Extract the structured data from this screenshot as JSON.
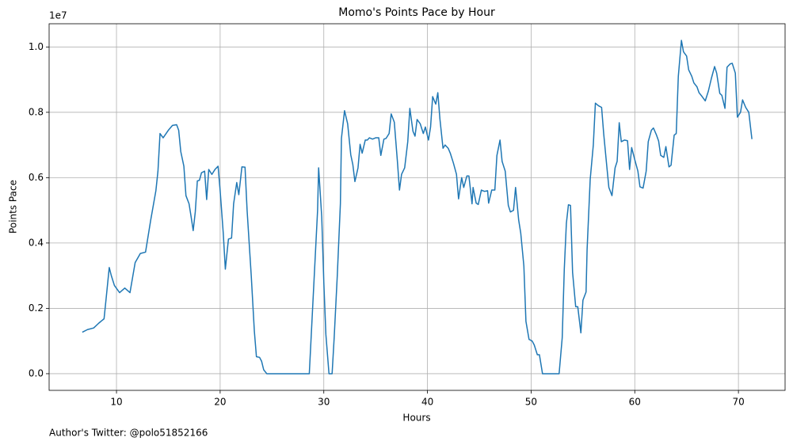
{
  "chart_data": {
    "type": "line",
    "title": "Momo's Points Pace by Hour",
    "x_label": "Hours",
    "y_label": "Points Pace",
    "y_offset_label": "1e7",
    "footer": "Author's Twitter: @polo51852166",
    "grid": true,
    "xlim": [
      3.5,
      74.5
    ],
    "xticks": [
      10,
      20,
      30,
      40,
      50,
      60,
      70
    ],
    "ylim": [
      -510000,
      10710000
    ],
    "yticks": [
      {
        "value": 0,
        "label": "0.0"
      },
      {
        "value": 2000000,
        "label": "0.2"
      },
      {
        "value": 4000000,
        "label": "0.4"
      },
      {
        "value": 6000000,
        "label": "0.6"
      },
      {
        "value": 8000000,
        "label": "0.8"
      },
      {
        "value": 10000000,
        "label": "1.0"
      }
    ],
    "series": [
      {
        "color": "#1f77b4",
        "x": [
          6.7,
          7.2,
          7.8,
          8.3,
          8.8,
          9.0,
          9.3,
          9.5,
          9.8,
          10.3,
          10.8,
          11.3,
          11.8,
          12.3,
          12.8,
          13.3,
          13.8,
          14.0,
          14.2,
          14.5,
          15.0,
          15.4,
          15.8,
          16.0,
          16.2,
          16.5,
          16.7,
          17.0,
          17.2,
          17.4,
          17.6,
          17.8,
          18.0,
          18.2,
          18.5,
          18.7,
          18.9,
          19.2,
          19.5,
          19.8,
          20.0,
          20.3,
          20.5,
          20.8,
          21.1,
          21.3,
          21.6,
          21.8,
          22.1,
          22.4,
          22.6,
          23.0,
          23.3,
          23.5,
          23.8,
          24.0,
          24.2,
          24.5,
          28.6,
          29.0,
          29.4,
          29.5,
          29.8,
          30.0,
          30.2,
          30.5,
          30.8,
          31.0,
          31.3,
          31.6,
          31.7,
          32.0,
          32.3,
          32.6,
          32.8,
          33.0,
          33.3,
          33.5,
          33.7,
          34.0,
          34.2,
          34.4,
          34.7,
          35.0,
          35.3,
          35.5,
          35.8,
          36.0,
          36.3,
          36.5,
          36.8,
          37.1,
          37.3,
          37.5,
          37.8,
          38.1,
          38.3,
          38.6,
          38.8,
          39.0,
          39.3,
          39.6,
          39.8,
          40.1,
          40.3,
          40.5,
          40.8,
          41.0,
          41.2,
          41.5,
          41.7,
          42.0,
          42.2,
          42.5,
          42.8,
          43.0,
          43.3,
          43.5,
          43.8,
          44.0,
          44.3,
          44.4,
          44.7,
          44.9,
          45.2,
          45.5,
          45.8,
          45.9,
          46.2,
          46.5,
          46.7,
          47.0,
          47.2,
          47.5,
          47.8,
          48.0,
          48.3,
          48.5,
          48.8,
          49.0,
          49.3,
          49.5,
          49.8,
          50.1,
          50.3,
          50.6,
          50.8,
          51.1,
          52.7,
          53.0,
          53.2,
          53.4,
          53.6,
          53.8,
          54.0,
          54.3,
          54.5,
          54.8,
          55.0,
          55.3,
          55.4,
          55.7,
          56.0,
          56.2,
          56.5,
          56.8,
          57.0,
          57.3,
          57.5,
          57.8,
          58.1,
          58.3,
          58.5,
          58.7,
          59.0,
          59.3,
          59.5,
          59.7,
          60.0,
          60.3,
          60.5,
          60.8,
          61.1,
          61.3,
          61.6,
          61.8,
          62.1,
          62.3,
          62.5,
          62.8,
          63.0,
          63.3,
          63.5,
          63.8,
          64.0,
          64.2,
          64.5,
          64.7,
          65.0,
          65.2,
          65.5,
          65.7,
          66.0,
          66.2,
          66.5,
          66.8,
          67.1,
          67.4,
          67.7,
          67.9,
          68.2,
          68.4,
          68.7,
          68.9,
          69.2,
          69.4,
          69.7,
          69.9,
          70.2,
          70.4,
          70.7,
          71.0,
          71.3
        ],
        "values": [
          1270000,
          1350000,
          1400000,
          1550000,
          1680000,
          2300000,
          3250000,
          3000000,
          2700000,
          2480000,
          2620000,
          2480000,
          3400000,
          3680000,
          3720000,
          4700000,
          5600000,
          6200000,
          7350000,
          7220000,
          7450000,
          7600000,
          7620000,
          7450000,
          6800000,
          6350000,
          5450000,
          5200000,
          4800000,
          4380000,
          4950000,
          5900000,
          5920000,
          6150000,
          6200000,
          5330000,
          6250000,
          6100000,
          6250000,
          6350000,
          5600000,
          4300000,
          3200000,
          4120000,
          4150000,
          5200000,
          5850000,
          5480000,
          6330000,
          6320000,
          5000000,
          3000000,
          1300000,
          520000,
          500000,
          380000,
          120000,
          0,
          0,
          2500000,
          5000000,
          6300000,
          4800000,
          2800000,
          1200000,
          0,
          0,
          1100000,
          3000000,
          5200000,
          7200000,
          8050000,
          7650000,
          6700000,
          6400000,
          5880000,
          6300000,
          7020000,
          6750000,
          7150000,
          7150000,
          7220000,
          7180000,
          7220000,
          7220000,
          6680000,
          7180000,
          7200000,
          7350000,
          7950000,
          7700000,
          6500000,
          5620000,
          6100000,
          6300000,
          7100000,
          8120000,
          7420000,
          7270000,
          7780000,
          7650000,
          7350000,
          7550000,
          7150000,
          7550000,
          8480000,
          8250000,
          8600000,
          7800000,
          6900000,
          7000000,
          6900000,
          6750000,
          6450000,
          6100000,
          5350000,
          6000000,
          5700000,
          6050000,
          6050000,
          5200000,
          5700000,
          5220000,
          5180000,
          5620000,
          5580000,
          5600000,
          5220000,
          5620000,
          5620000,
          6680000,
          7150000,
          6500000,
          6200000,
          5150000,
          4950000,
          5000000,
          5700000,
          4700000,
          4300000,
          3300000,
          1600000,
          1050000,
          1000000,
          880000,
          580000,
          580000,
          0,
          0,
          1100000,
          3200000,
          4600000,
          5170000,
          5150000,
          3100000,
          2050000,
          2050000,
          1250000,
          2250000,
          2500000,
          3800000,
          5950000,
          7000000,
          8280000,
          8200000,
          8150000,
          7350000,
          6350000,
          5700000,
          5450000,
          6300000,
          6500000,
          7680000,
          7100000,
          7150000,
          7130000,
          6250000,
          6920000,
          6550000,
          6200000,
          5720000,
          5680000,
          6200000,
          7100000,
          7450000,
          7520000,
          7300000,
          7120000,
          6680000,
          6620000,
          6950000,
          6330000,
          6380000,
          7300000,
          7350000,
          9100000,
          10200000,
          9850000,
          9720000,
          9300000,
          9100000,
          8900000,
          8780000,
          8600000,
          8480000,
          8350000,
          8650000,
          9050000,
          9400000,
          9200000,
          8580000,
          8520000,
          8120000,
          9380000,
          9480000,
          9500000,
          9200000,
          7850000,
          8000000,
          8380000,
          8150000,
          8000000,
          7180000
        ]
      }
    ]
  }
}
